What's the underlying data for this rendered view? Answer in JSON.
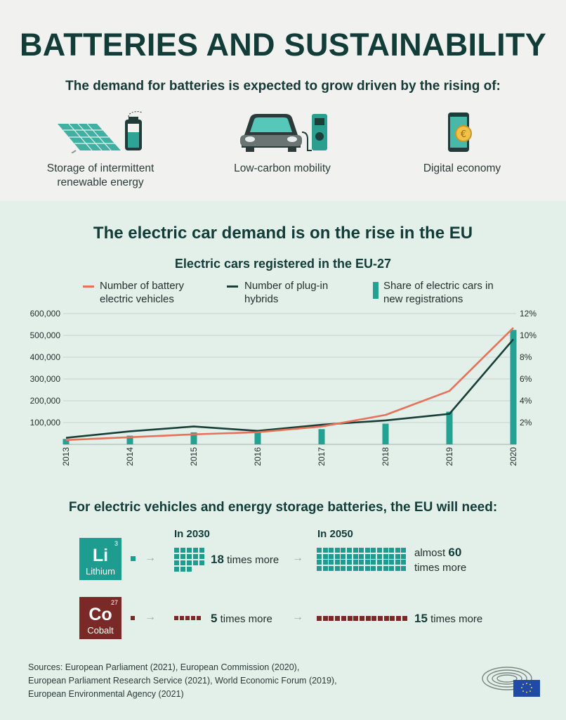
{
  "header": {
    "title": "BATTERIES AND SUSTAINABILITY",
    "subtitle": "The demand for batteries is expected to grow driven by the rising of:"
  },
  "drivers": [
    {
      "icon": "solar-panel-battery-icon",
      "label": "Storage of intermittent renewable energy"
    },
    {
      "icon": "electric-car-charger-icon",
      "label": "Low-carbon mobility"
    },
    {
      "icon": "smartphone-coin-icon",
      "label": "Digital economy"
    }
  ],
  "section": {
    "heading": "The electric car demand is on the rise in the EU"
  },
  "colors": {
    "bev": "#e8715a",
    "phev": "#173f38",
    "share": "#23a293",
    "lithium": "#1e9c8f",
    "cobalt": "#7a2a26"
  },
  "chart_data": {
    "type": "line",
    "title": "Electric cars registered in the EU-27",
    "categories": [
      "2013",
      "2014",
      "2015",
      "2016",
      "2017",
      "2018",
      "2019",
      "2020"
    ],
    "series": [
      {
        "name": "Number of battery electric vehicles",
        "type": "line",
        "axis": "left",
        "values": [
          20000,
          33000,
          46000,
          56000,
          82000,
          135000,
          245000,
          535000
        ]
      },
      {
        "name": "Number of plug-in hybrids",
        "type": "line",
        "axis": "left",
        "values": [
          30000,
          60000,
          82000,
          62000,
          90000,
          110000,
          140000,
          482000
        ]
      },
      {
        "name": "Share of electric cars in new registrations",
        "type": "bar",
        "axis": "right",
        "values": [
          0.5,
          0.8,
          1.1,
          1.1,
          1.4,
          1.9,
          3.0,
          10.5
        ]
      }
    ],
    "y_left": {
      "ylim": [
        0,
        600000
      ],
      "ticks": [
        "100,000",
        "200,000",
        "300,000",
        "400,000",
        "500,000",
        "600,000"
      ]
    },
    "y_right": {
      "ylim": [
        0,
        12
      ],
      "ticks": [
        "2%",
        "4%",
        "6%",
        "8%",
        "10%",
        "12%"
      ]
    },
    "legend_position": "top",
    "grid": "horizontal"
  },
  "needs": {
    "heading": "For electric vehicles and energy storage batteries, the EU will need:",
    "year1": "In 2030",
    "year2": "In 2050",
    "lithium": {
      "symbol": "Li",
      "number": "3",
      "name": "Lithium",
      "mult_2030": "18",
      "text_2030": "times more",
      "prefix_2050": "almost",
      "mult_2050": "60",
      "text_2050": "times more"
    },
    "cobalt": {
      "symbol": "Co",
      "number": "27",
      "name": "Cobalt",
      "mult_2030": "5",
      "text_2030": "times more",
      "mult_2050": "15",
      "text_2050": "times more"
    }
  },
  "sources": [
    "Sources: European Parliament (2021), European Commission (2020),",
    "European Parliament Research Service (2021), World Economic Forum (2019),",
    "European Environmental Agency (2021)"
  ]
}
